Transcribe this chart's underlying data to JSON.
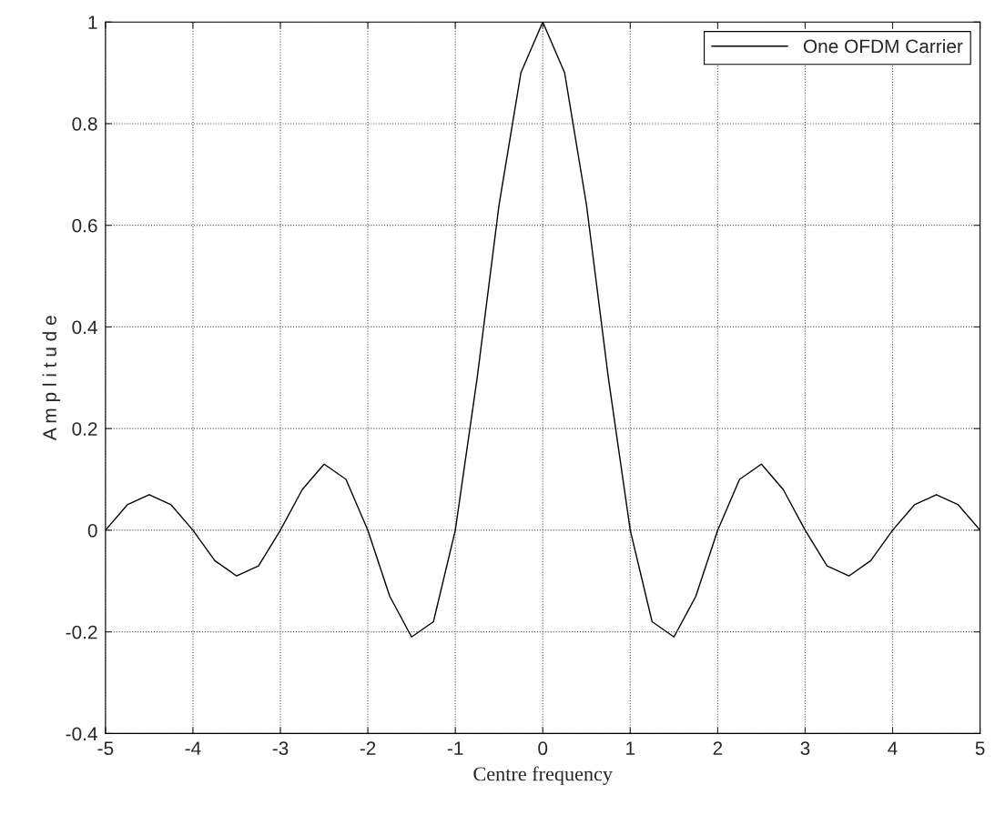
{
  "chart_data": {
    "type": "line",
    "xlabel": "Centre frequency",
    "ylabel": "A m p l i t u d e",
    "x": [
      -5,
      -4.75,
      -4.5,
      -4.25,
      -4,
      -3.75,
      -3.5,
      -3.25,
      -3,
      -2.75,
      -2.5,
      -2.25,
      -2,
      -1.75,
      -1.5,
      -1.25,
      -1,
      -0.75,
      -0.5,
      -0.25,
      0,
      0.25,
      0.5,
      0.75,
      1,
      1.25,
      1.5,
      1.75,
      2,
      2.25,
      2.5,
      2.75,
      3,
      3.25,
      3.5,
      3.75,
      4,
      4.25,
      4.5,
      4.75,
      5
    ],
    "series": [
      {
        "name": "One OFDM Carrier",
        "color": "#000000",
        "values": [
          0,
          0.05,
          0.07,
          0.05,
          0,
          -0.06,
          -0.09,
          -0.07,
          0,
          0.08,
          0.13,
          0.1,
          0,
          -0.13,
          -0.21,
          -0.18,
          0,
          0.3,
          0.64,
          0.9,
          1,
          0.9,
          0.64,
          0.3,
          0,
          -0.18,
          -0.21,
          -0.13,
          0,
          0.1,
          0.13,
          0.08,
          0,
          -0.07,
          -0.09,
          -0.06,
          0,
          0.05,
          0.07,
          0.05,
          0
        ]
      }
    ],
    "xlim": [
      -5,
      5
    ],
    "xticks": [
      -5,
      -4,
      -3,
      -2,
      -1,
      0,
      1,
      2,
      3,
      4,
      5
    ],
    "ylim": [
      -0.4,
      1
    ],
    "yticks": [
      -0.4,
      -0.2,
      0,
      0.2,
      0.4,
      0.6,
      0.8,
      1
    ],
    "grid": true,
    "legend": "top right",
    "marker": "none",
    "line_style": "solid"
  }
}
